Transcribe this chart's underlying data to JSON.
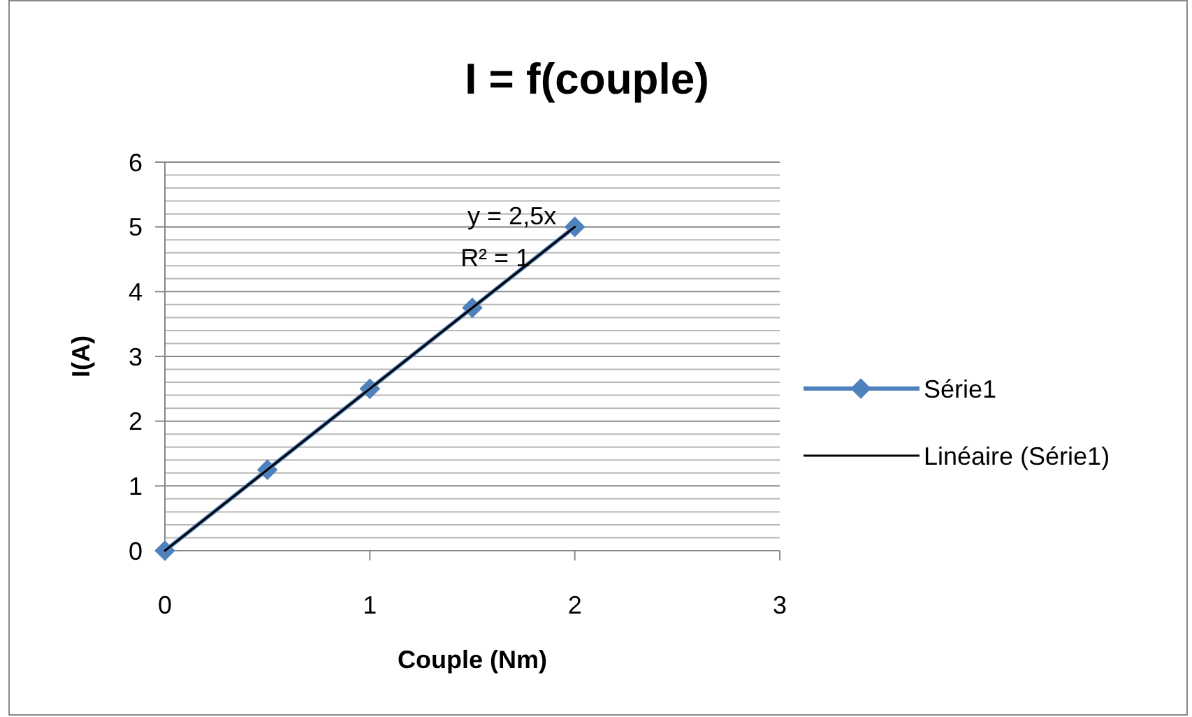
{
  "chart_data": {
    "type": "line",
    "title": "I = f(couple)",
    "xlabel": "Couple (Nm)",
    "ylabel": "I(A)",
    "xlim": [
      0,
      3
    ],
    "xticks": [
      0,
      1,
      2,
      3
    ],
    "ylim": [
      0,
      6
    ],
    "yticks": [
      0,
      {
        "value": 0.2,
        "label": null
      },
      {
        "value": 0.4,
        "label": null
      },
      {
        "value": 0.6,
        "label": null
      },
      {
        "value": 0.8,
        "label": null
      },
      1,
      {
        "value": 1.2,
        "label": null
      },
      {
        "value": 1.4,
        "label": null
      },
      {
        "value": 1.6,
        "label": null
      },
      {
        "value": 1.8,
        "label": null
      },
      2,
      {
        "value": 2.2,
        "label": null
      },
      {
        "value": 2.4,
        "label": null
      },
      {
        "value": 2.6,
        "label": null
      },
      {
        "value": 2.8,
        "label": null
      },
      3,
      {
        "value": 3.2,
        "label": null
      },
      {
        "value": 3.4,
        "label": null
      },
      {
        "value": 3.6,
        "label": null
      },
      {
        "value": 3.8,
        "label": null
      },
      4,
      {
        "value": 4.2,
        "label": null
      },
      {
        "value": 4.4,
        "label": null
      },
      {
        "value": 4.6,
        "label": null
      },
      {
        "value": 4.8,
        "label": null
      },
      5,
      {
        "value": 5.2,
        "label": null
      },
      {
        "value": 5.4,
        "label": null
      },
      {
        "value": 5.6,
        "label": null
      },
      {
        "value": 5.8,
        "label": null
      },
      6
    ],
    "grid": "y",
    "legend": "right",
    "marker": "diamond",
    "line_style": "solid",
    "series": [
      {
        "name": "Série1",
        "color": "#4f81bd",
        "x": [
          0,
          0.5,
          1,
          1.5,
          2
        ],
        "values": [
          0,
          1.25,
          2.5,
          3.75,
          5
        ]
      },
      {
        "name": "Linéaire (Série1)",
        "type": "line",
        "marker": "none",
        "color": "#000000",
        "x": [
          0,
          2
        ],
        "values": [
          0,
          5
        ]
      }
    ],
    "annotations": [
      "y = 2,5x",
      "R² = 1"
    ]
  }
}
